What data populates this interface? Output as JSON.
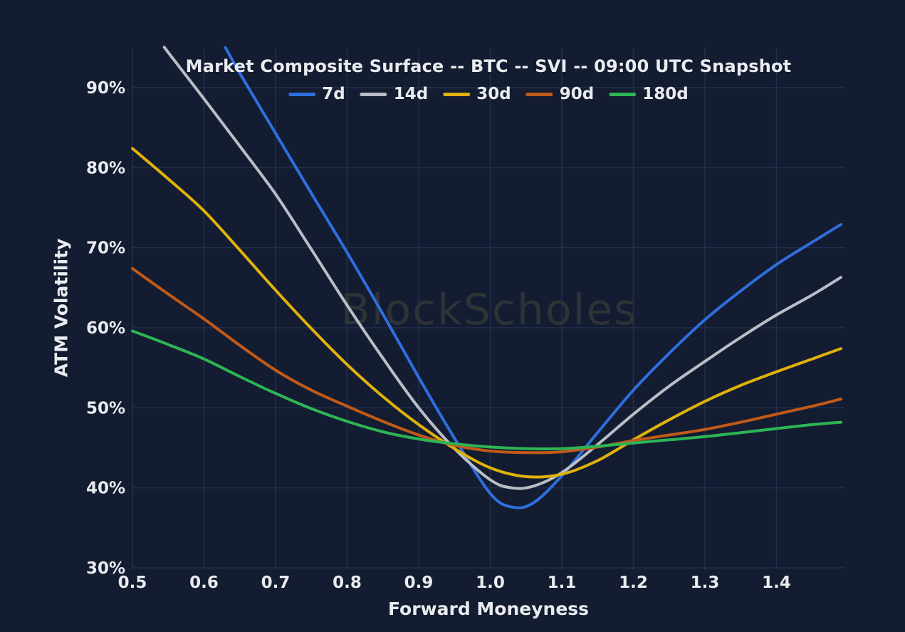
{
  "watermark": "BlockScholes",
  "colors": {
    "background": "#131c31",
    "grid_line": "#22304e",
    "text": "#e9ebee",
    "watermark": "#2d3336",
    "series_7d": "#2e6fdd",
    "series_14d": "#b9bec6",
    "series_30d": "#dfb20b",
    "series_90d": "#c05a18",
    "series_180d": "#2eb454"
  },
  "chart_data": {
    "type": "line",
    "title": "Market Composite Surface -- BTC -- SVI -- 09:00 UTC Snapshot",
    "xlabel": "Forward Moneyness",
    "ylabel": "ATM Volatility",
    "xlim": [
      0.5,
      1.495
    ],
    "ylim": [
      30,
      95
    ],
    "grid": true,
    "legend_position": "top-center",
    "x_ticks": [
      {
        "v": 0.5,
        "label": "0.5"
      },
      {
        "v": 0.6,
        "label": "0.6"
      },
      {
        "v": 0.7,
        "label": "0.7"
      },
      {
        "v": 0.8,
        "label": "0.8"
      },
      {
        "v": 0.9,
        "label": "0.9"
      },
      {
        "v": 1.0,
        "label": "1.0"
      },
      {
        "v": 1.1,
        "label": "1.1"
      },
      {
        "v": 1.2,
        "label": "1.2"
      },
      {
        "v": 1.3,
        "label": "1.3"
      },
      {
        "v": 1.4,
        "label": "1.4"
      }
    ],
    "y_ticks": [
      {
        "v": 30,
        "label": "30%"
      },
      {
        "v": 40,
        "label": "40%"
      },
      {
        "v": 50,
        "label": "50%"
      },
      {
        "v": 60,
        "label": "60%"
      },
      {
        "v": 70,
        "label": "70%"
      },
      {
        "v": 80,
        "label": "80%"
      },
      {
        "v": 90,
        "label": "90%"
      }
    ],
    "series": [
      {
        "name": "7d",
        "color": "#2e6fdd",
        "points": [
          [
            0.63,
            95.0
          ],
          [
            0.65,
            91.8
          ],
          [
            0.7,
            84.3
          ],
          [
            0.75,
            76.8
          ],
          [
            0.8,
            69.4
          ],
          [
            0.85,
            61.7
          ],
          [
            0.9,
            53.8
          ],
          [
            0.95,
            46.2
          ],
          [
            1.0,
            39.3
          ],
          [
            1.03,
            37.6
          ],
          [
            1.06,
            38.1
          ],
          [
            1.1,
            41.5
          ],
          [
            1.15,
            46.9
          ],
          [
            1.2,
            52.2
          ],
          [
            1.25,
            56.8
          ],
          [
            1.3,
            61.0
          ],
          [
            1.35,
            64.6
          ],
          [
            1.4,
            67.9
          ],
          [
            1.45,
            70.7
          ],
          [
            1.49,
            72.9
          ]
        ]
      },
      {
        "name": "14d",
        "color": "#b9bec6",
        "points": [
          [
            0.545,
            95.0
          ],
          [
            0.55,
            94.4
          ],
          [
            0.6,
            88.6
          ],
          [
            0.65,
            82.7
          ],
          [
            0.7,
            76.7
          ],
          [
            0.75,
            69.8
          ],
          [
            0.8,
            62.8
          ],
          [
            0.85,
            56.2
          ],
          [
            0.9,
            50.0
          ],
          [
            0.95,
            44.9
          ],
          [
            1.0,
            41.0
          ],
          [
            1.03,
            40.0
          ],
          [
            1.06,
            40.2
          ],
          [
            1.1,
            41.9
          ],
          [
            1.15,
            45.4
          ],
          [
            1.2,
            49.2
          ],
          [
            1.25,
            52.7
          ],
          [
            1.3,
            55.8
          ],
          [
            1.35,
            58.8
          ],
          [
            1.4,
            61.6
          ],
          [
            1.45,
            64.1
          ],
          [
            1.49,
            66.3
          ]
        ]
      },
      {
        "name": "30d",
        "color": "#dfb20b",
        "points": [
          [
            0.5,
            82.4
          ],
          [
            0.55,
            78.6
          ],
          [
            0.6,
            74.6
          ],
          [
            0.65,
            69.7
          ],
          [
            0.7,
            64.7
          ],
          [
            0.75,
            59.9
          ],
          [
            0.8,
            55.4
          ],
          [
            0.85,
            51.4
          ],
          [
            0.9,
            47.9
          ],
          [
            0.95,
            44.9
          ],
          [
            1.0,
            42.5
          ],
          [
            1.05,
            41.4
          ],
          [
            1.1,
            41.7
          ],
          [
            1.15,
            43.4
          ],
          [
            1.2,
            46.0
          ],
          [
            1.25,
            48.5
          ],
          [
            1.3,
            50.8
          ],
          [
            1.35,
            52.8
          ],
          [
            1.4,
            54.5
          ],
          [
            1.45,
            56.1
          ],
          [
            1.49,
            57.4
          ]
        ]
      },
      {
        "name": "90d",
        "color": "#c05a18",
        "points": [
          [
            0.5,
            67.4
          ],
          [
            0.55,
            64.2
          ],
          [
            0.6,
            61.1
          ],
          [
            0.65,
            57.8
          ],
          [
            0.7,
            54.7
          ],
          [
            0.75,
            52.2
          ],
          [
            0.8,
            50.2
          ],
          [
            0.85,
            48.3
          ],
          [
            0.9,
            46.6
          ],
          [
            0.95,
            45.3
          ],
          [
            1.0,
            44.6
          ],
          [
            1.05,
            44.4
          ],
          [
            1.1,
            44.5
          ],
          [
            1.15,
            45.1
          ],
          [
            1.2,
            45.9
          ],
          [
            1.25,
            46.6
          ],
          [
            1.3,
            47.3
          ],
          [
            1.35,
            48.2
          ],
          [
            1.4,
            49.2
          ],
          [
            1.45,
            50.2
          ],
          [
            1.49,
            51.1
          ]
        ]
      },
      {
        "name": "180d",
        "color": "#2eb454",
        "points": [
          [
            0.5,
            59.6
          ],
          [
            0.55,
            57.9
          ],
          [
            0.6,
            56.1
          ],
          [
            0.65,
            53.9
          ],
          [
            0.7,
            51.8
          ],
          [
            0.75,
            49.9
          ],
          [
            0.8,
            48.3
          ],
          [
            0.85,
            47.0
          ],
          [
            0.9,
            46.1
          ],
          [
            0.95,
            45.5
          ],
          [
            1.0,
            45.1
          ],
          [
            1.05,
            44.9
          ],
          [
            1.1,
            44.9
          ],
          [
            1.15,
            45.2
          ],
          [
            1.2,
            45.6
          ],
          [
            1.25,
            46.0
          ],
          [
            1.3,
            46.4
          ],
          [
            1.35,
            46.9
          ],
          [
            1.4,
            47.4
          ],
          [
            1.45,
            47.9
          ],
          [
            1.49,
            48.2
          ]
        ]
      }
    ]
  }
}
